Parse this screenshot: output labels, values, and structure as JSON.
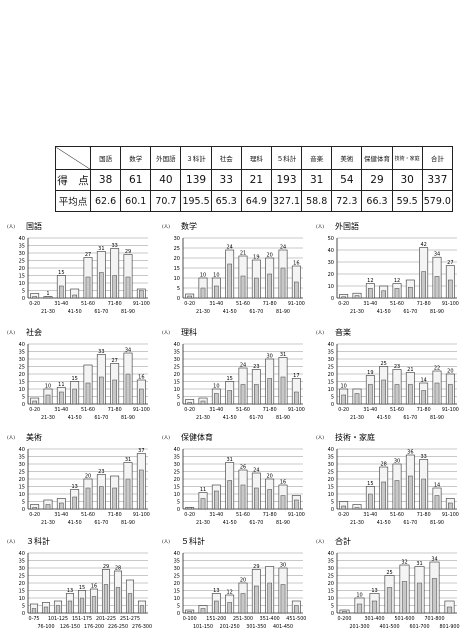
{
  "table": {
    "headers": [
      "国語",
      "数学",
      "外国語",
      "３科計",
      "社会",
      "理科",
      "５科計",
      "音楽",
      "美術",
      "保健体育",
      "技術・家庭",
      "合計"
    ],
    "rows": [
      {
        "label": "得　点",
        "values": [
          "38",
          "61",
          "40",
          "139",
          "33",
          "21",
          "193",
          "31",
          "54",
          "29",
          "30",
          "337"
        ]
      },
      {
        "label": "平均点",
        "values": [
          "62.6",
          "60.1",
          "70.7",
          "195.5",
          "65.3",
          "64.9",
          "327.1",
          "58.8",
          "72.3",
          "66.3",
          "59.5",
          "579.0"
        ]
      }
    ]
  },
  "chart_data": [
    {
      "type": "bar",
      "title": "国語",
      "unit": "(人)",
      "ylim": [
        0,
        40
      ],
      "yticks": [
        "0",
        "5",
        "10",
        "15",
        "20",
        "25",
        "30",
        "35",
        "40"
      ],
      "categories": [
        "0-20",
        "21-30",
        "31-40",
        "41-50",
        "51-60",
        "61-70",
        "71-80",
        "81-90",
        "91-100"
      ],
      "upper_labels": [
        "0-20",
        "31-40",
        "51-60",
        "71-80",
        "91-100"
      ],
      "lower_labels": [
        "21-30",
        "41-50",
        "61-70",
        "81-90"
      ],
      "series": [
        {
          "values": [
            3,
            1,
            15,
            6,
            27,
            31,
            33,
            29,
            6
          ]
        },
        {
          "values": [
            1,
            1,
            8,
            2,
            14,
            17,
            15,
            14,
            5
          ]
        }
      ],
      "data_labels": [
        "",
        "1",
        "15",
        "",
        "27",
        "31",
        "33",
        "29",
        ""
      ]
    },
    {
      "type": "bar",
      "title": "数学",
      "unit": "(人)",
      "ylim": [
        0,
        30
      ],
      "yticks": [
        "0",
        "5",
        "10",
        "15",
        "20",
        "25",
        "30"
      ],
      "categories": [
        "0-20",
        "21-30",
        "31-40",
        "41-50",
        "51-60",
        "61-70",
        "71-80",
        "81-90",
        "91-100"
      ],
      "upper_labels": [
        "0-20",
        "31-40",
        "51-60",
        "71-80",
        "91-100"
      ],
      "lower_labels": [
        "21-30",
        "41-50",
        "61-70",
        "81-90"
      ],
      "series": [
        {
          "values": [
            2,
            10,
            10,
            24,
            21,
            19,
            20,
            24,
            16
          ]
        },
        {
          "values": [
            1,
            5,
            6,
            17,
            11,
            10,
            12,
            15,
            8
          ]
        }
      ],
      "data_labels": [
        "",
        "10",
        "10",
        "24",
        "21",
        "19",
        "20",
        "24",
        "16"
      ]
    },
    {
      "type": "bar",
      "title": "外国語",
      "unit": "(人)",
      "ylim": [
        0,
        50
      ],
      "yticks": [
        "0",
        "10",
        "20",
        "30",
        "40",
        "50"
      ],
      "categories": [
        "0-20",
        "21-30",
        "31-40",
        "41-50",
        "51-60",
        "61-70",
        "71-80",
        "81-90",
        "91-100"
      ],
      "upper_labels": [
        "0-20",
        "31-40",
        "51-60",
        "71-80",
        "91-100"
      ],
      "lower_labels": [
        "21-30",
        "41-50",
        "61-70",
        "81-90"
      ],
      "series": [
        {
          "values": [
            3,
            4,
            12,
            10,
            12,
            15,
            42,
            34,
            27
          ]
        },
        {
          "values": [
            1,
            2,
            8,
            6,
            8,
            9,
            22,
            18,
            15
          ]
        }
      ],
      "data_labels": [
        "",
        "",
        "12",
        "",
        "12",
        "",
        "42",
        "34",
        "27"
      ]
    },
    {
      "type": "bar",
      "title": "社会",
      "unit": "(人)",
      "ylim": [
        0,
        40
      ],
      "yticks": [
        "0",
        "5",
        "10",
        "15",
        "20",
        "25",
        "30",
        "35",
        "40"
      ],
      "categories": [
        "0-20",
        "21-30",
        "31-40",
        "41-50",
        "51-60",
        "61-70",
        "71-80",
        "81-90",
        "91-100"
      ],
      "upper_labels": [
        "0-20",
        "31-40",
        "51-60",
        "71-80",
        "91-100"
      ],
      "lower_labels": [
        "21-30",
        "41-50",
        "61-70",
        "81-90"
      ],
      "series": [
        {
          "values": [
            4,
            10,
            11,
            15,
            26,
            33,
            27,
            34,
            16
          ]
        },
        {
          "values": [
            2,
            6,
            8,
            10,
            14,
            18,
            16,
            20,
            10
          ]
        }
      ],
      "data_labels": [
        "",
        "10",
        "11",
        "15",
        "",
        "33",
        "27",
        "34",
        "16"
      ]
    },
    {
      "type": "bar",
      "title": "理科",
      "unit": "(人)",
      "ylim": [
        0,
        40
      ],
      "yticks": [
        "0",
        "5",
        "10",
        "15",
        "20",
        "25",
        "30",
        "35",
        "40"
      ],
      "categories": [
        "0-20",
        "21-30",
        "31-40",
        "41-50",
        "51-60",
        "61-70",
        "71-80",
        "81-90",
        "91-100"
      ],
      "upper_labels": [
        "0-20",
        "31-40",
        "51-60",
        "71-80",
        "91-100"
      ],
      "lower_labels": [
        "21-30",
        "41-50",
        "61-70",
        "81-90"
      ],
      "series": [
        {
          "values": [
            3,
            4,
            10,
            15,
            24,
            23,
            30,
            31,
            17
          ]
        },
        {
          "values": [
            1,
            2,
            7,
            9,
            13,
            13,
            17,
            18,
            8
          ]
        }
      ],
      "data_labels": [
        "",
        "",
        "10",
        "15",
        "24",
        "23",
        "30",
        "31",
        "17"
      ]
    },
    {
      "type": "bar",
      "title": "音楽",
      "unit": "(人)",
      "ylim": [
        0,
        40
      ],
      "yticks": [
        "0",
        "5",
        "10",
        "15",
        "20",
        "25",
        "30",
        "35",
        "40"
      ],
      "categories": [
        "0-20",
        "21-30",
        "31-40",
        "41-50",
        "51-60",
        "61-70",
        "71-80",
        "81-90",
        "91-100"
      ],
      "upper_labels": [
        "0-20",
        "31-40",
        "51-60",
        "71-80",
        "91-100"
      ],
      "lower_labels": [
        "21-30",
        "41-50",
        "61-70",
        "81-90"
      ],
      "series": [
        {
          "values": [
            10,
            10,
            19,
            25,
            23,
            21,
            14,
            22,
            20
          ]
        },
        {
          "values": [
            6,
            7,
            13,
            16,
            13,
            13,
            9,
            14,
            13
          ]
        }
      ],
      "data_labels": [
        "10",
        "",
        "19",
        "25",
        "23",
        "21",
        "14",
        "22",
        "20"
      ]
    },
    {
      "type": "bar",
      "title": "美術",
      "unit": "(人)",
      "ylim": [
        0,
        40
      ],
      "yticks": [
        "0",
        "5",
        "10",
        "15",
        "20",
        "25",
        "30",
        "35",
        "40"
      ],
      "categories": [
        "0-20",
        "21-30",
        "31-40",
        "41-50",
        "51-60",
        "61-70",
        "71-80",
        "81-90",
        "91-100"
      ],
      "upper_labels": [
        "0-20",
        "31-40",
        "51-60",
        "71-80",
        "91-100"
      ],
      "lower_labels": [
        "21-30",
        "41-50",
        "61-70",
        "81-90"
      ],
      "series": [
        {
          "values": [
            3,
            6,
            7,
            13,
            20,
            23,
            22,
            31,
            37
          ]
        },
        {
          "values": [
            1,
            3,
            4,
            8,
            14,
            15,
            14,
            20,
            26
          ]
        }
      ],
      "data_labels": [
        "",
        "",
        "",
        "13",
        "20",
        "23",
        "",
        "31",
        "37"
      ]
    },
    {
      "type": "bar",
      "title": "保健体育",
      "unit": "(人)",
      "ylim": [
        0,
        40
      ],
      "yticks": [
        "0",
        "5",
        "10",
        "15",
        "20",
        "25",
        "30",
        "35",
        "40"
      ],
      "categories": [
        "0-20",
        "21-30",
        "31-40",
        "41-50",
        "51-60",
        "61-70",
        "71-80",
        "81-90",
        "91-100"
      ],
      "upper_labels": [
        "0-20",
        "31-40",
        "51-60",
        "71-80",
        "91-100"
      ],
      "lower_labels": [
        "21-30",
        "41-50",
        "61-70",
        "81-90"
      ],
      "series": [
        {
          "values": [
            1,
            11,
            16,
            31,
            26,
            24,
            20,
            16,
            9
          ]
        },
        {
          "values": [
            1,
            7,
            12,
            19,
            16,
            14,
            13,
            9,
            6
          ]
        }
      ],
      "data_labels": [
        "",
        "11",
        "",
        "31",
        "26",
        "24",
        "20",
        "16",
        ""
      ]
    },
    {
      "type": "bar",
      "title": "技術・家庭",
      "unit": "(人)",
      "ylim": [
        0,
        40
      ],
      "yticks": [
        "0",
        "5",
        "10",
        "15",
        "20",
        "25",
        "30",
        "35",
        "40"
      ],
      "categories": [
        "0-20",
        "21-30",
        "31-40",
        "41-50",
        "51-60",
        "61-70",
        "71-80",
        "81-90",
        "91-100"
      ],
      "upper_labels": [
        "0-20",
        "31-40",
        "51-60",
        "71-80",
        "91-100"
      ],
      "lower_labels": [
        "21-30",
        "41-50",
        "61-70",
        "81-90"
      ],
      "series": [
        {
          "values": [
            5,
            3,
            15,
            28,
            30,
            36,
            33,
            14,
            7
          ]
        },
        {
          "values": [
            2,
            1,
            10,
            18,
            19,
            22,
            20,
            9,
            4
          ]
        }
      ],
      "data_labels": [
        "",
        "",
        "15",
        "28",
        "30",
        "36",
        "33",
        "14",
        ""
      ]
    },
    {
      "type": "bar",
      "title": "３科計",
      "unit": "(人)",
      "ylim": [
        0,
        40
      ],
      "yticks": [
        "0",
        "5",
        "10",
        "15",
        "20",
        "25",
        "30",
        "35",
        "40"
      ],
      "categories": [
        "0-75",
        "76-100",
        "101-125",
        "126-150",
        "151-175",
        "176-200",
        "201-225",
        "226-250",
        "251-275",
        "276-300"
      ],
      "upper_labels": [
        "0-75",
        "101-125",
        "151-175",
        "201-225",
        "251-275"
      ],
      "lower_labels": [
        "76-100",
        "126-150",
        "176-200",
        "226-250",
        "276-300"
      ],
      "series": [
        {
          "values": [
            6,
            7,
            8,
            13,
            15,
            16,
            29,
            28,
            22,
            8
          ]
        },
        {
          "values": [
            3,
            4,
            5,
            8,
            10,
            11,
            19,
            17,
            13,
            5
          ]
        }
      ],
      "data_labels": [
        "",
        "",
        "",
        "13",
        "15",
        "16",
        "29",
        "28",
        "",
        ""
      ]
    },
    {
      "type": "bar",
      "title": "５科計",
      "unit": "(人)",
      "ylim": [
        0,
        40
      ],
      "yticks": [
        "0",
        "5",
        "10",
        "15",
        "20",
        "25",
        "30",
        "35",
        "40"
      ],
      "categories": [
        "0-100",
        "101-150",
        "151-200",
        "201-250",
        "251-300",
        "301-350",
        "351-400",
        "401-450",
        "451-500"
      ],
      "upper_labels": [
        "0-100",
        "151-200",
        "251-300",
        "351-400",
        "451-500"
      ],
      "lower_labels": [
        "101-150",
        "201-250",
        "301-350",
        "401-450"
      ],
      "series": [
        {
          "values": [
            2,
            5,
            13,
            12,
            20,
            29,
            31,
            30,
            8
          ]
        },
        {
          "values": [
            1,
            3,
            8,
            7,
            13,
            18,
            20,
            19,
            5
          ]
        }
      ],
      "data_labels": [
        "",
        "",
        "13",
        "12",
        "20",
        "29",
        "",
        "30",
        ""
      ]
    },
    {
      "type": "bar",
      "title": "合計",
      "unit": "(人)",
      "ylim": [
        0,
        40
      ],
      "yticks": [
        "0",
        "5",
        "10",
        "15",
        "20",
        "25",
        "30",
        "35",
        "40"
      ],
      "categories": [
        "0-200",
        "201-300",
        "301-400",
        "401-500",
        "501-600",
        "601-700",
        "701-800",
        "801-900"
      ],
      "upper_labels": [
        "0-200",
        "301-400",
        "501-600",
        "701-800"
      ],
      "lower_labels": [
        "201-300",
        "401-500",
        "601-700",
        "801-900"
      ],
      "series": [
        {
          "values": [
            2,
            10,
            13,
            25,
            32,
            31,
            34,
            8
          ]
        },
        {
          "values": [
            1,
            6,
            8,
            17,
            21,
            20,
            23,
            4
          ]
        }
      ],
      "data_labels": [
        "",
        "10",
        "13",
        "25",
        "32",
        "31",
        "34",
        ""
      ]
    }
  ]
}
